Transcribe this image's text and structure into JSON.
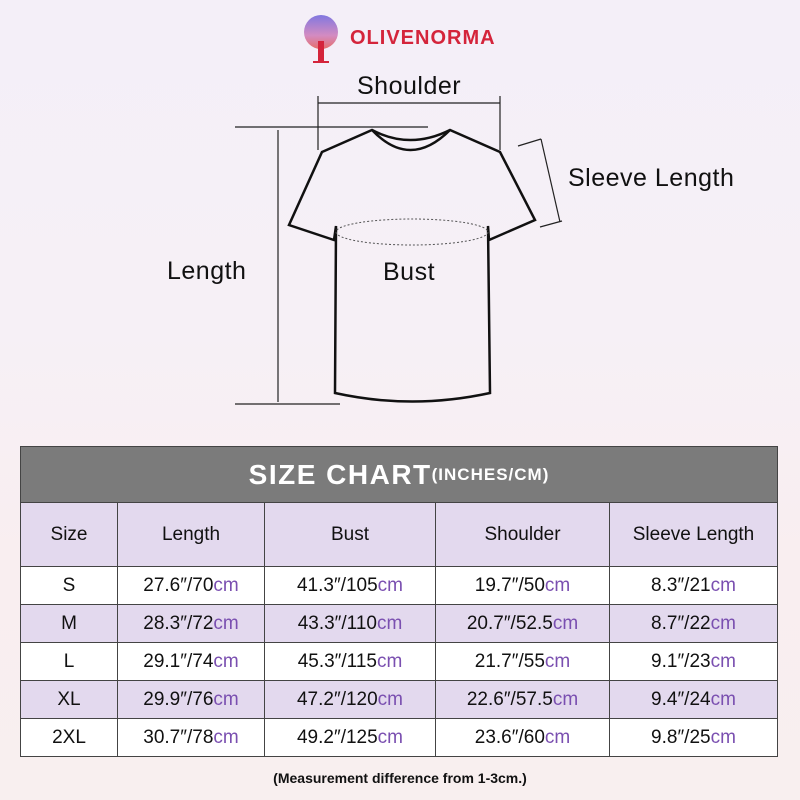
{
  "brand": "OLIVENORMA",
  "diagram": {
    "shoulder": "Shoulder",
    "sleeve_length": "Sleeve Length",
    "length": "Length",
    "bust": "Bust"
  },
  "table": {
    "title": "SIZE CHART",
    "title_units": "(INCHES/CM)",
    "headers": [
      "Size",
      "Length",
      "Bust",
      "Shoulder",
      "Sleeve Length"
    ],
    "unit_suffix": "cm",
    "rows": [
      {
        "size": "S",
        "cells": [
          [
            "27.6″/70",
            "cm"
          ],
          [
            "41.3″/105",
            "cm"
          ],
          [
            "19.7″/50",
            "cm"
          ],
          [
            "8.3″/21",
            "cm"
          ]
        ]
      },
      {
        "size": "M",
        "cells": [
          [
            "28.3″/72",
            "cm"
          ],
          [
            "43.3″/110",
            "cm"
          ],
          [
            "20.7″/52.5",
            "cm"
          ],
          [
            "8.7″/22",
            "cm"
          ]
        ]
      },
      {
        "size": "L",
        "cells": [
          [
            "29.1″/74",
            "cm"
          ],
          [
            "45.3″/115",
            "cm"
          ],
          [
            "21.7″/55",
            "cm"
          ],
          [
            "9.1″/23",
            "cm"
          ]
        ]
      },
      {
        "size": "XL",
        "cells": [
          [
            "29.9″/76",
            "cm"
          ],
          [
            "47.2″/120",
            "cm"
          ],
          [
            "22.6″/57.5",
            "cm"
          ],
          [
            "9.4″/24",
            "cm"
          ]
        ]
      },
      {
        "size": "2XL",
        "cells": [
          [
            "30.7″/78",
            "cm"
          ],
          [
            "49.2″/125",
            "cm"
          ],
          [
            "23.6″/60",
            "cm"
          ],
          [
            "9.8″/25",
            "cm"
          ]
        ]
      }
    ]
  },
  "note": "(Measurement difference from 1-3cm.)",
  "colors": {
    "brand": "#d4243b",
    "header_bg": "#7b7b7b",
    "row_alt": "#e3d9ee",
    "cm": "#7a4fb0"
  }
}
